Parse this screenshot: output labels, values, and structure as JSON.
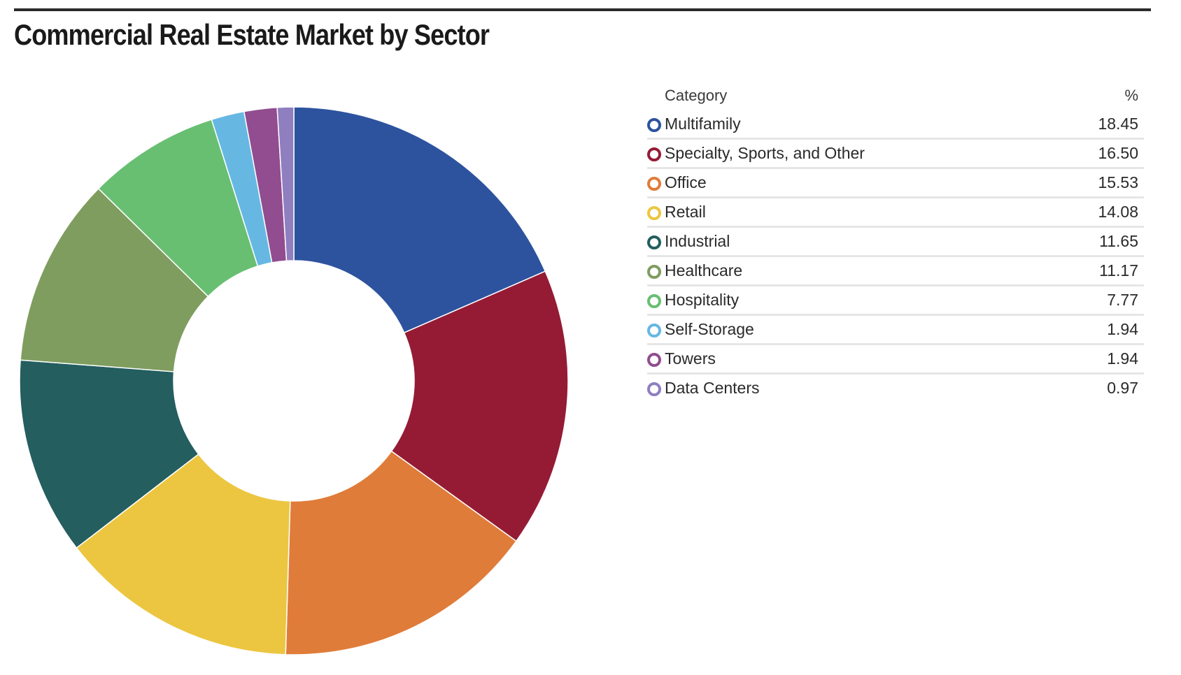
{
  "title": "Commercial Real Estate Market by Sector",
  "legend": {
    "header_category": "Category",
    "header_value": "%"
  },
  "chart_data": {
    "type": "pie",
    "title": "Commercial Real Estate Market by Sector",
    "style": "donut",
    "categories": [
      "Multifamily",
      "Specialty, Sports, and Other",
      "Office",
      "Retail",
      "Industrial",
      "Healthcare",
      "Hospitality",
      "Self-Storage",
      "Towers",
      "Data Centers"
    ],
    "values": [
      18.45,
      16.5,
      15.53,
      14.08,
      11.65,
      11.17,
      7.77,
      1.94,
      1.94,
      0.97
    ],
    "value_labels": [
      "18.45",
      "16.50",
      "15.53",
      "14.08",
      "11.65",
      "11.17",
      "7.77",
      "1.94",
      "1.94",
      "0.97"
    ],
    "colors": [
      "#2d539e",
      "#951b35",
      "#e07c39",
      "#ecc640",
      "#245e5f",
      "#7f9d5f",
      "#68bf72",
      "#66b8e3",
      "#914d8f",
      "#8f7fc0"
    ],
    "legend_position": "right"
  }
}
